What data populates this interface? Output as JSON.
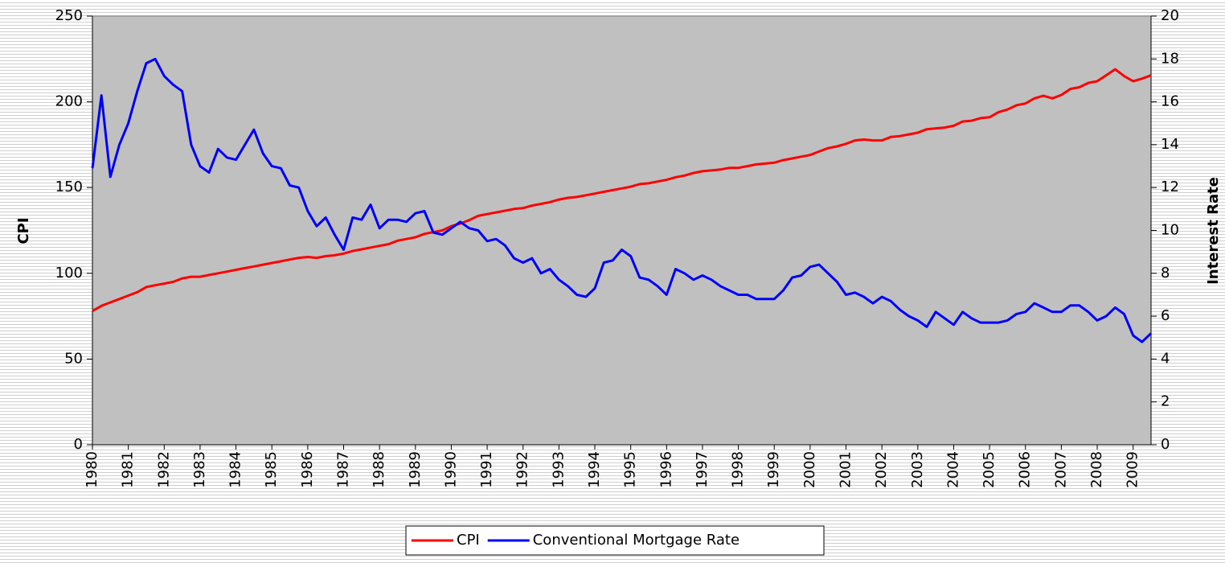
{
  "chart_data": {
    "type": "line",
    "x": [
      1980,
      1980.25,
      1980.5,
      1980.75,
      1981,
      1981.25,
      1981.5,
      1981.75,
      1982,
      1982.25,
      1982.5,
      1982.75,
      1983,
      1983.25,
      1983.5,
      1983.75,
      1984,
      1984.25,
      1984.5,
      1984.75,
      1985,
      1985.25,
      1985.5,
      1985.75,
      1986,
      1986.25,
      1986.5,
      1986.75,
      1987,
      1987.25,
      1987.5,
      1987.75,
      1988,
      1988.25,
      1988.5,
      1988.75,
      1989,
      1989.25,
      1989.5,
      1989.75,
      1990,
      1990.25,
      1990.5,
      1990.75,
      1991,
      1991.25,
      1991.5,
      1991.75,
      1992,
      1992.25,
      1992.5,
      1992.75,
      1993,
      1993.25,
      1993.5,
      1993.75,
      1994,
      1994.25,
      1994.5,
      1994.75,
      1995,
      1995.25,
      1995.5,
      1995.75,
      1996,
      1996.25,
      1996.5,
      1996.75,
      1997,
      1997.25,
      1997.5,
      1997.75,
      1998,
      1998.25,
      1998.5,
      1998.75,
      1999,
      1999.25,
      1999.5,
      1999.75,
      2000,
      2000.25,
      2000.5,
      2000.75,
      2001,
      2001.25,
      2001.5,
      2001.75,
      2002,
      2002.25,
      2002.5,
      2002.75,
      2003,
      2003.25,
      2003.5,
      2003.75,
      2004,
      2004.25,
      2004.5,
      2004.75,
      2005,
      2005.25,
      2005.5,
      2005.75,
      2006,
      2006.25,
      2006.5,
      2006.75,
      2007,
      2007.25,
      2007.5,
      2007.75,
      2008,
      2008.25,
      2008.5,
      2008.75,
      2009,
      2009.25,
      2009.5
    ],
    "series": [
      {
        "name": "CPI",
        "color": "#ff0000",
        "axis": "y",
        "values": [
          78,
          81,
          83,
          85,
          87,
          89,
          92,
          93,
          94,
          95,
          97,
          98,
          98,
          99,
          100,
          101,
          102,
          103,
          104,
          105,
          106,
          107,
          108,
          109,
          109.5,
          109,
          110,
          110.5,
          111.5,
          113,
          114,
          115,
          116,
          117,
          119,
          120,
          121,
          123,
          124,
          125,
          127.5,
          129,
          131,
          133.5,
          134.5,
          135.5,
          136.5,
          137.5,
          138,
          139.5,
          140.5,
          141.5,
          143,
          144,
          144.5,
          145.5,
          146.5,
          147.5,
          148.5,
          149.5,
          150.5,
          152,
          152.5,
          153.5,
          154.5,
          156,
          157,
          158.5,
          159.5,
          160,
          160.5,
          161.5,
          161.5,
          162.5,
          163.5,
          164,
          164.5,
          166,
          167,
          168,
          169,
          171,
          173,
          174,
          175.5,
          177.5,
          178,
          177.5,
          177.5,
          179.5,
          180,
          181,
          182,
          184,
          184.5,
          185,
          186,
          188.5,
          189,
          190.5,
          191,
          194,
          195.5,
          198,
          199,
          202,
          203.5,
          202,
          204,
          207.5,
          208.5,
          211,
          212,
          215.5,
          219,
          215,
          212,
          213.5,
          215.5
        ]
      },
      {
        "name": "Conventional Mortgage Rate",
        "color": "#0000ff",
        "axis": "y2",
        "values": [
          12.9,
          16.3,
          12.5,
          14.0,
          15.0,
          16.5,
          17.8,
          18.0,
          17.2,
          16.8,
          16.5,
          14.0,
          13.0,
          12.7,
          13.8,
          13.4,
          13.3,
          14.0,
          14.7,
          13.6,
          13.0,
          12.9,
          12.1,
          12.0,
          10.9,
          10.2,
          10.6,
          9.8,
          9.1,
          10.6,
          10.5,
          11.2,
          10.1,
          10.5,
          10.5,
          10.4,
          10.8,
          10.9,
          9.9,
          9.8,
          10.1,
          10.4,
          10.1,
          10.0,
          9.5,
          9.6,
          9.3,
          8.7,
          8.5,
          8.7,
          8.0,
          8.2,
          7.7,
          7.4,
          7.0,
          6.9,
          7.3,
          8.5,
          8.6,
          9.1,
          8.8,
          7.8,
          7.7,
          7.4,
          7.0,
          8.2,
          8.0,
          7.7,
          7.9,
          7.7,
          7.4,
          7.2,
          7.0,
          7.0,
          6.8,
          6.8,
          6.8,
          7.2,
          7.8,
          7.9,
          8.3,
          8.4,
          8.0,
          7.6,
          7.0,
          7.1,
          6.9,
          6.6,
          6.9,
          6.7,
          6.3,
          6.0,
          5.8,
          5.5,
          6.2,
          5.9,
          5.6,
          6.2,
          5.9,
          5.7,
          5.7,
          5.7,
          5.8,
          6.1,
          6.2,
          6.6,
          6.4,
          6.2,
          6.2,
          6.5,
          6.5,
          6.2,
          5.8,
          6.0,
          6.4,
          6.1,
          5.1,
          4.8,
          5.2
        ]
      }
    ],
    "ylabel": "CPI",
    "y2label": "Interest Rate",
    "xlim": [
      1980,
      2009.5
    ],
    "xticks": [
      1980,
      1981,
      1982,
      1983,
      1984,
      1985,
      1986,
      1987,
      1988,
      1989,
      1990,
      1991,
      1992,
      1993,
      1994,
      1995,
      1996,
      1997,
      1998,
      1999,
      2000,
      2001,
      2002,
      2003,
      2004,
      2005,
      2006,
      2007,
      2008,
      2009
    ],
    "ylim": [
      0,
      250
    ],
    "yticks": [
      0,
      50,
      100,
      150,
      200,
      250
    ],
    "y2lim": [
      0,
      20
    ],
    "y2ticks": [
      0,
      2,
      4,
      6,
      8,
      10,
      12,
      14,
      16,
      18,
      20
    ],
    "legend": "bottom"
  }
}
